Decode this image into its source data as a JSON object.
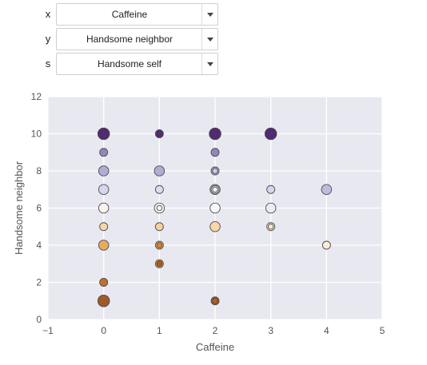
{
  "controls": {
    "x": {
      "label": "x",
      "value": "Caffeine"
    },
    "y": {
      "label": "y",
      "value": "Handsome neighbor"
    },
    "s": {
      "label": "s",
      "value": "Handsome self"
    }
  },
  "icons": {
    "caret": "caret-down-icon"
  },
  "colors": {
    "axes_background": "#e8e8f1",
    "grid": "#ffffff",
    "tick_text": "#555555",
    "label_text": "#555555",
    "marker_edge": "#4b4b4b"
  },
  "chart_data": {
    "type": "scatter",
    "xlabel": "Caffeine",
    "ylabel": "Handsome neighbor",
    "xlim": [
      -1,
      5
    ],
    "ylim": [
      0,
      12
    ],
    "xticks": [
      "−1",
      "0",
      "1",
      "2",
      "3",
      "4",
      "5"
    ],
    "yticks": [
      "0",
      "2",
      "4",
      "6",
      "8",
      "10",
      "12"
    ],
    "grid": true,
    "colormap": "PuOr",
    "marker_layers": [
      {
        "x": 0,
        "y": 10,
        "shade": 1.0,
        "size": "large"
      },
      {
        "x": 0,
        "y": 9,
        "shade": 0.84,
        "size": "small"
      },
      {
        "x": 0,
        "y": 8,
        "shade": 0.78,
        "size": "medium"
      },
      {
        "x": 0,
        "y": 7,
        "shade": 0.68,
        "size": "medium"
      },
      {
        "x": 0,
        "y": 6,
        "shade": 0.54,
        "size": "medium"
      },
      {
        "x": 0,
        "y": 5,
        "shade": 0.42,
        "size": "small"
      },
      {
        "x": 0,
        "y": 4,
        "shade": 0.3,
        "size": "medium"
      },
      {
        "x": 0,
        "y": 2,
        "shade": 0.16,
        "size": "small"
      },
      {
        "x": 0,
        "y": 1,
        "shade": 0.05,
        "size": "large"
      },
      {
        "x": 1,
        "y": 10,
        "shade": 1.0,
        "size": "small"
      },
      {
        "x": 1,
        "y": 8,
        "shade": 0.78,
        "size": "medium"
      },
      {
        "x": 1,
        "y": 7,
        "shade": 0.66,
        "size": "small"
      },
      {
        "x": 1,
        "y": 6,
        "shade": 0.54,
        "size": "medium"
      },
      {
        "x": 1,
        "y": 6,
        "shade": 0.56,
        "size": "tiny"
      },
      {
        "x": 1,
        "y": 5,
        "shade": 0.4,
        "size": "small"
      },
      {
        "x": 1,
        "y": 4,
        "shade": 0.32,
        "size": "small"
      },
      {
        "x": 1,
        "y": 4,
        "shade": 0.24,
        "size": "tiny"
      },
      {
        "x": 1,
        "y": 3,
        "shade": 0.24,
        "size": "small"
      },
      {
        "x": 1,
        "y": 3,
        "shade": 0.12,
        "size": "tiny"
      },
      {
        "x": 2,
        "y": 10,
        "shade": 1.0,
        "size": "large"
      },
      {
        "x": 2,
        "y": 9,
        "shade": 0.84,
        "size": "small"
      },
      {
        "x": 2,
        "y": 8,
        "shade": 0.76,
        "size": "small"
      },
      {
        "x": 2,
        "y": 8,
        "shade": 0.68,
        "size": "tiny"
      },
      {
        "x": 2,
        "y": 7,
        "shade": 0.66,
        "size": "medium"
      },
      {
        "x": 2,
        "y": 7,
        "shade": 0.62,
        "size": "small"
      },
      {
        "x": 2,
        "y": 7,
        "shade": 0.58,
        "size": "tiny"
      },
      {
        "x": 2,
        "y": 6,
        "shade": 0.56,
        "size": "medium"
      },
      {
        "x": 2,
        "y": 5,
        "shade": 0.42,
        "size": "medium"
      },
      {
        "x": 2,
        "y": 1,
        "shade": 0.08,
        "size": "small"
      },
      {
        "x": 2,
        "y": 1,
        "shade": 0.18,
        "size": "tiny"
      },
      {
        "x": 3,
        "y": 10,
        "shade": 1.0,
        "size": "large"
      },
      {
        "x": 3,
        "y": 7,
        "shade": 0.68,
        "size": "small"
      },
      {
        "x": 3,
        "y": 6,
        "shade": 0.6,
        "size": "medium"
      },
      {
        "x": 3,
        "y": 5,
        "shade": 0.52,
        "size": "small"
      },
      {
        "x": 3,
        "y": 5,
        "shade": 0.48,
        "size": "tiny"
      },
      {
        "x": 4,
        "y": 7,
        "shade": 0.74,
        "size": "medium"
      },
      {
        "x": 4,
        "y": 4,
        "shade": 0.5,
        "size": "small"
      }
    ]
  }
}
